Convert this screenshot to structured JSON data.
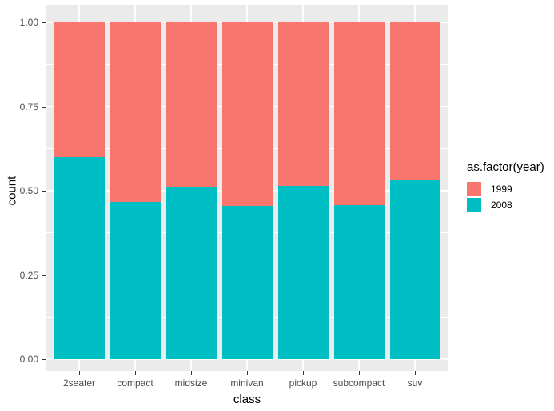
{
  "chart_data": {
    "type": "bar",
    "variant": "stacked-fill",
    "title": "",
    "xlabel": "class",
    "ylabel": "count",
    "categories": [
      "2seater",
      "compact",
      "midsize",
      "minivan",
      "pickup",
      "subcompact",
      "suv"
    ],
    "series": [
      {
        "name": "1999",
        "color": "#F8766D",
        "values": [
          0.4,
          0.532,
          0.488,
          0.545,
          0.485,
          0.543,
          0.468
        ]
      },
      {
        "name": "2008",
        "color": "#00BFC4",
        "values": [
          0.6,
          0.468,
          0.512,
          0.455,
          0.515,
          0.457,
          0.532
        ]
      }
    ],
    "stack_order_top_to_bottom": [
      "1999",
      "2008"
    ],
    "ylim": [
      0,
      1
    ],
    "yticks": [
      0,
      0.25,
      0.5,
      0.75,
      1
    ],
    "ytick_labels": [
      "0.00",
      "0.25",
      "0.50",
      "0.75",
      "1.00"
    ],
    "minor_yticks": [
      0.125,
      0.375,
      0.625,
      0.875
    ],
    "grid": "major-and-minor-white-on-gray",
    "legend_title": "as.factor(year)",
    "legend_position": "right",
    "legend_entries": [
      "1999",
      "2008"
    ]
  },
  "colors": {
    "panel_background": "#EBEBEB",
    "gridline": "#FFFFFF",
    "axis_text": "#4D4D4D",
    "tick_mark": "#333333",
    "axis_title": "#000000",
    "series_1999": "#F8766D",
    "series_2008": "#00BFC4",
    "figure_background": "#FFFFFF"
  }
}
